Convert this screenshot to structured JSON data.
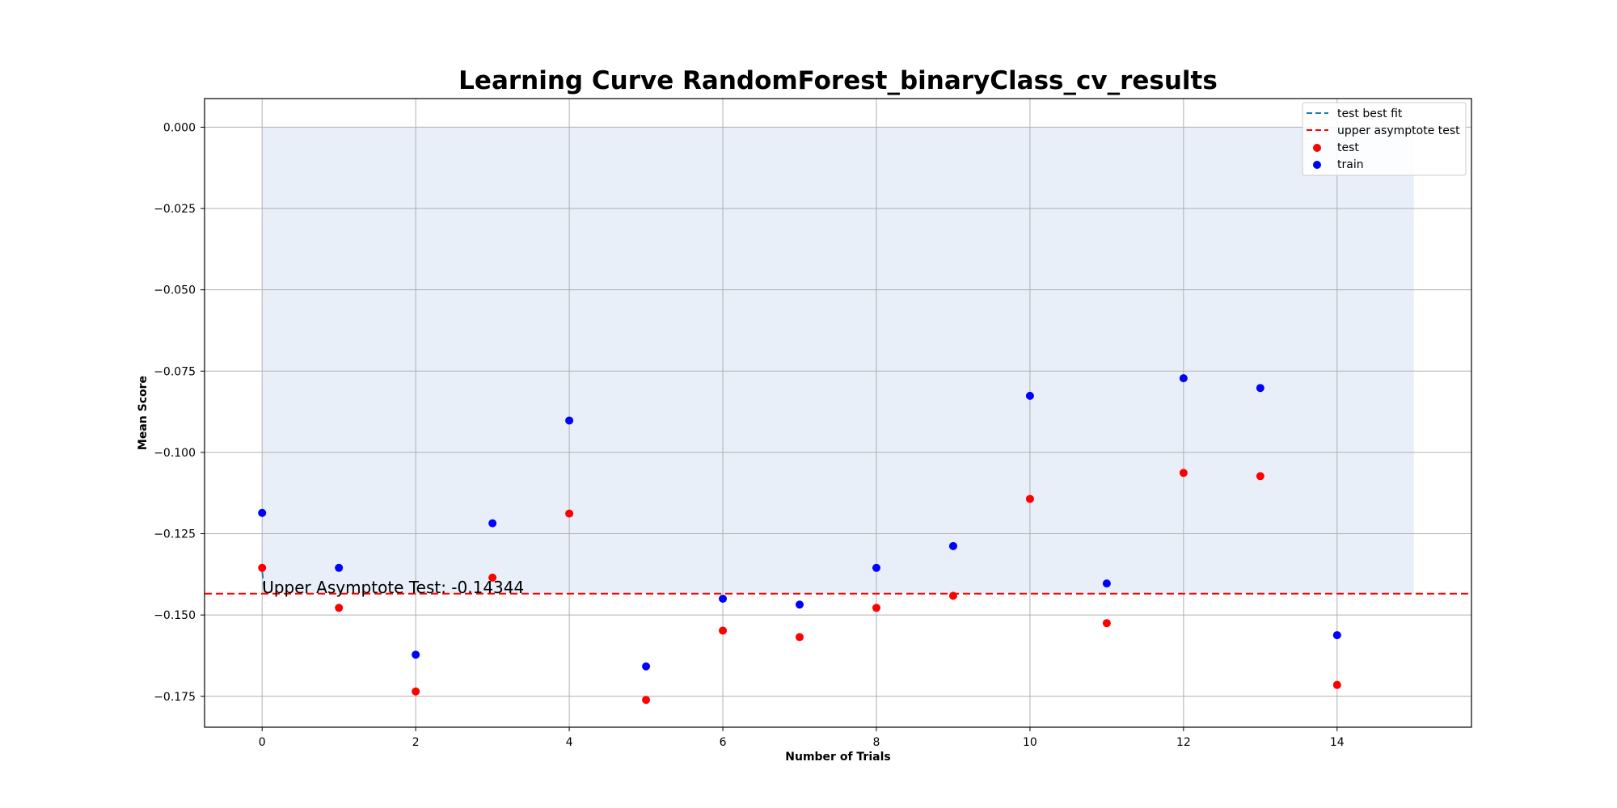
{
  "chart_data": {
    "type": "scatter",
    "title": "Learning Curve RandomForest_binaryClass_cv_results",
    "xlabel": "Number of Trials",
    "ylabel": "Mean Score",
    "xlim": [
      -0.75,
      15.75
    ],
    "ylim": [
      -0.1845,
      0.0088
    ],
    "x_ticks": [
      0,
      2,
      4,
      6,
      8,
      10,
      12,
      14
    ],
    "x_tick_labels": [
      "0",
      "2",
      "4",
      "6",
      "8",
      "10",
      "12",
      "14"
    ],
    "y_ticks": [
      0.0,
      -0.025,
      -0.05,
      -0.075,
      -0.1,
      -0.125,
      -0.15,
      -0.175
    ],
    "y_tick_labels": [
      "0.000",
      "−0.025",
      "−0.050",
      "−0.075",
      "−0.100",
      "−0.125",
      "−0.150",
      "−0.175"
    ],
    "grid": true,
    "legend_position": "top-right",
    "shaded_region": {
      "x": [
        0,
        15
      ],
      "y": [
        -0.14344,
        0.0
      ],
      "color": "#e8eff8"
    },
    "series": [
      {
        "name": "test best fit",
        "kind": "line",
        "style": "dashed",
        "color": "#1f77b4",
        "x": [
          0,
          0.03
        ],
        "y": [
          -0.1365,
          -0.1425
        ]
      },
      {
        "name": "upper asymptote test",
        "kind": "hline",
        "style": "dashed",
        "color": "#ff0000",
        "y": -0.14344
      },
      {
        "name": "test",
        "kind": "scatter",
        "color": "#ff0000",
        "x": [
          0,
          1,
          2,
          3,
          4,
          5,
          6,
          7,
          8,
          9,
          10,
          11,
          12,
          13,
          14
        ],
        "y": [
          -0.1355,
          -0.1478,
          -0.1735,
          -0.1385,
          -0.1188,
          -0.1761,
          -0.1548,
          -0.1568,
          -0.1478,
          -0.1441,
          -0.1143,
          -0.1525,
          -0.1063,
          -0.1073,
          -0.1715
        ]
      },
      {
        "name": "train",
        "kind": "scatter",
        "color": "#0000ff",
        "x": [
          0,
          1,
          2,
          3,
          4,
          5,
          6,
          7,
          8,
          9,
          10,
          11,
          12,
          13,
          14
        ],
        "y": [
          -0.1186,
          -0.1355,
          -0.1622,
          -0.1218,
          -0.0902,
          -0.1658,
          -0.145,
          -0.1468,
          -0.1355,
          -0.1288,
          -0.0826,
          -0.1403,
          -0.0772,
          -0.0802,
          -0.1562
        ]
      }
    ],
    "annotations": [
      {
        "text": "Upper Asymptote Test: -0.14344",
        "x": 0,
        "y": -0.14344
      }
    ]
  }
}
